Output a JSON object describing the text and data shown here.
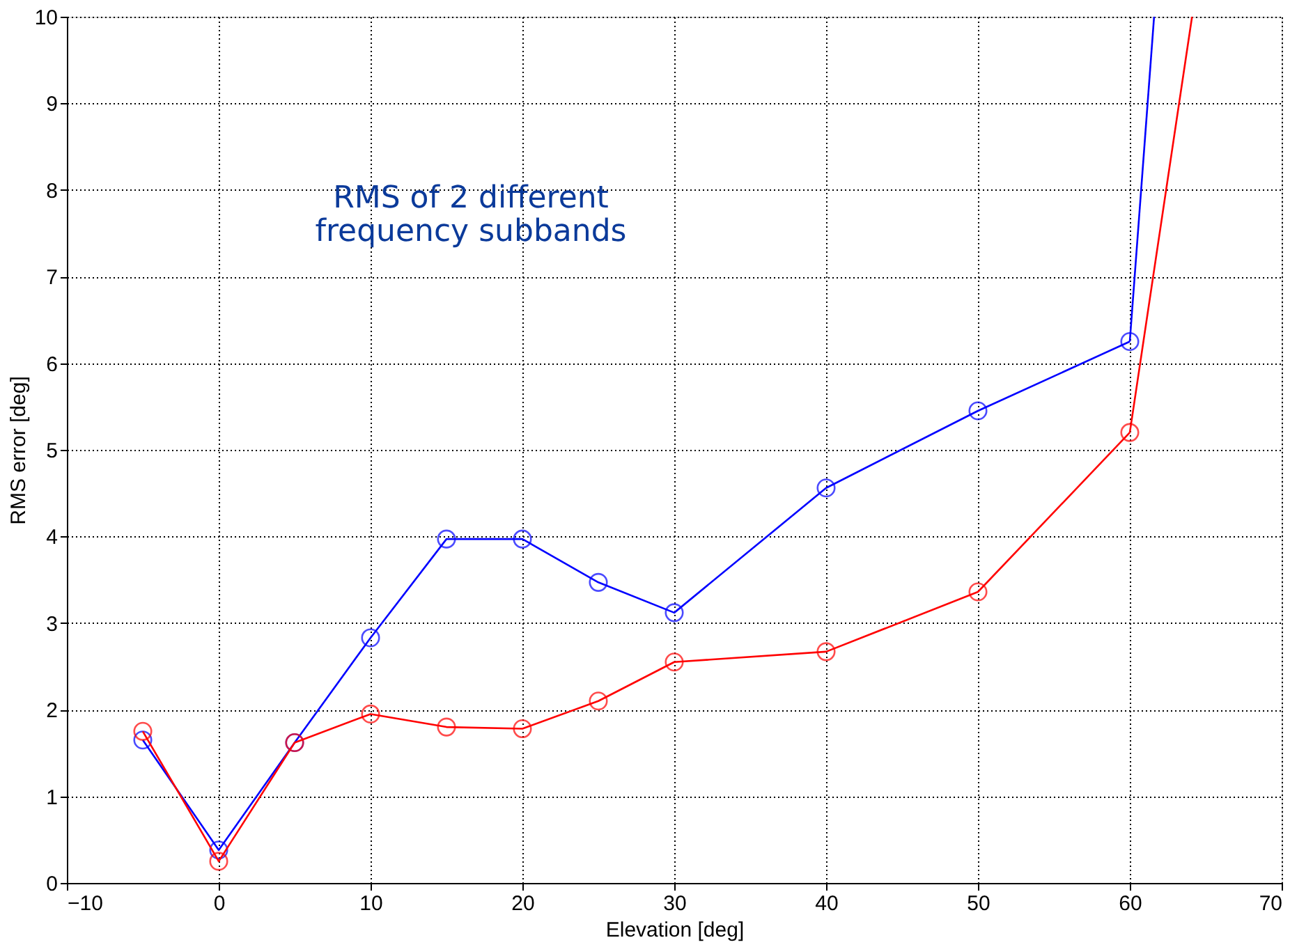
{
  "chart_data": {
    "type": "line",
    "xlabel": "Elevation [deg]",
    "ylabel": "RMS error [deg]",
    "annotations": [
      "RMS of 2 different\nfrequency subbands"
    ],
    "series": [
      {
        "color": "#0000ff",
        "x": [
          -5,
          0,
          5,
          10,
          15,
          20,
          25,
          30,
          40,
          50,
          60
        ],
        "values": [
          1.65,
          0.38,
          1.62,
          2.83,
          3.97,
          3.97,
          3.47,
          3.12,
          4.56,
          5.45,
          6.25
        ]
      },
      {
        "color": "#ff0000",
        "x": [
          -5,
          0,
          5,
          10,
          15,
          20,
          25,
          30,
          40,
          50,
          60
        ],
        "values": [
          1.75,
          0.25,
          1.62,
          1.95,
          1.8,
          1.78,
          2.1,
          2.55,
          2.67,
          3.36,
          5.2
        ]
      },
      {
        "color": "#0000ff",
        "x": [
          60,
          61.6
        ],
        "values": [
          6.25,
          10
        ],
        "marker": "none"
      },
      {
        "color": "#ff0000",
        "x": [
          60,
          64.1
        ],
        "values": [
          5.2,
          10
        ],
        "marker": "none"
      }
    ],
    "xlim": [
      -10,
      70
    ],
    "xticks": [
      -10,
      0,
      10,
      20,
      30,
      40,
      50,
      60,
      70
    ],
    "ylim": [
      0,
      10
    ],
    "yticks": [
      0,
      1,
      2,
      3,
      4,
      5,
      6,
      7,
      8,
      9,
      10
    ],
    "grid": true,
    "marker": "circle",
    "line_style": "solid"
  }
}
